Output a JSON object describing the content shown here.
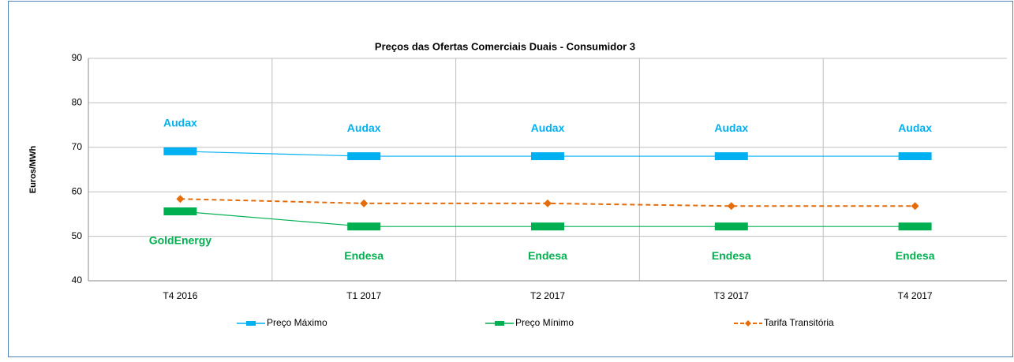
{
  "chart_data": {
    "type": "line",
    "title": "Preços das Ofertas Comerciais Duais - Consumidor 3",
    "y_label": "Euros/MWh",
    "categories": [
      "T4 2016",
      "T1 2017",
      "T2 2017",
      "T3 2017",
      "T4 2017"
    ],
    "series": [
      {
        "name": "Preço Máximo",
        "color": "#00b0f0",
        "marker": "dash",
        "dashed": false,
        "label_side": "above",
        "values": [
          69.1,
          68.0,
          68.0,
          68.0,
          68.0
        ],
        "point_labels": [
          "Audax",
          "Audax",
          "Audax",
          "Audax",
          "Audax"
        ]
      },
      {
        "name": "Preço Mínimo",
        "color": "#00b050",
        "marker": "dash",
        "dashed": false,
        "label_side": "below",
        "values": [
          55.6,
          52.2,
          52.2,
          52.2,
          52.2
        ],
        "point_labels": [
          "GoldEnergy",
          "Endesa",
          "Endesa",
          "Endesa",
          "Endesa"
        ]
      },
      {
        "name": "Tarifa Transitória",
        "color": "#e46c0a",
        "marker": "diamond",
        "dashed": true,
        "values": [
          58.4,
          57.4,
          57.4,
          56.8,
          56.8
        ]
      }
    ],
    "ylim": [
      40,
      90
    ],
    "yticks": [
      40,
      50,
      60,
      70,
      80,
      90
    ],
    "grid": true,
    "legend": "bottom"
  }
}
